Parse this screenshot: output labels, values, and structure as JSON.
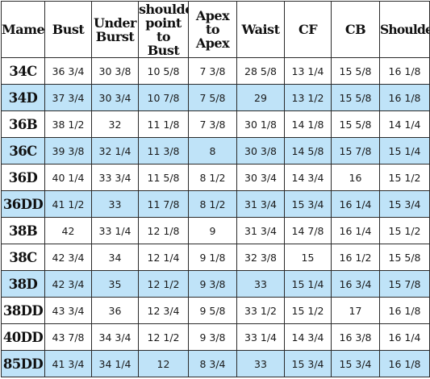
{
  "colors": {
    "highlight": "#bfe3f8",
    "plain": "#ffffff",
    "border": "#2a2a2a"
  },
  "headers": [
    "Mame",
    "Bust",
    "Under Burst",
    "shoulder point to Bust",
    "Apex to Apex",
    "Waist",
    "CF",
    "CB",
    "Shoulder"
  ],
  "rows": [
    {
      "size": "34C",
      "highlight": false,
      "values": [
        "36 3/4",
        "30 3/8",
        "10 5/8",
        "7 3/8",
        "28 5/8",
        "13 1/4",
        "15 5/8",
        "16 1/8"
      ]
    },
    {
      "size": "34D",
      "highlight": true,
      "values": [
        "37 3/4",
        "30 3/4",
        "10 7/8",
        "7 5/8",
        "29",
        "13 1/2",
        "15 5/8",
        "16 1/8"
      ]
    },
    {
      "size": "36B",
      "highlight": false,
      "values": [
        "38 1/2",
        "32",
        "11 1/8",
        "7 3/8",
        "30 1/8",
        "14 1/8",
        "15 5/8",
        "14 1/4"
      ]
    },
    {
      "size": "36C",
      "highlight": true,
      "values": [
        "39 3/8",
        "32 1/4",
        "11 3/8",
        "8",
        "30 3/8",
        "14 5/8",
        "15 7/8",
        "15 1/4"
      ]
    },
    {
      "size": "36D",
      "highlight": false,
      "values": [
        "40 1/4",
        "33 3/4",
        "11 5/8",
        "8 1/2",
        "30 3/4",
        "14 3/4",
        "16",
        "15 1/2"
      ]
    },
    {
      "size": "36DD",
      "highlight": true,
      "values": [
        "41 1/2",
        "33",
        "11 7/8",
        "8 1/2",
        "31 3/4",
        "15 3/4",
        "16 1/4",
        "15 3/4"
      ]
    },
    {
      "size": "38B",
      "highlight": false,
      "values": [
        "42",
        "33 1/4",
        "12 1/8",
        "9",
        "31 3/4",
        "14 7/8",
        "16 1/4",
        "15 1/2"
      ]
    },
    {
      "size": "38C",
      "highlight": false,
      "values": [
        "42 3/4",
        "34",
        "12 1/4",
        "9 1/8",
        "32 3/8",
        "15",
        "16 1/2",
        "15 5/8"
      ]
    },
    {
      "size": "38D",
      "highlight": true,
      "values": [
        "42 3/4",
        "35",
        "12 1/2",
        "9 3/8",
        "33",
        "15 1/4",
        "16 3/4",
        "15 7/8"
      ]
    },
    {
      "size": "38DD",
      "highlight": false,
      "values": [
        "43 3/4",
        "36",
        "12 3/4",
        "9 5/8",
        "33 1/2",
        "15 1/2",
        "17",
        "16 1/8"
      ]
    },
    {
      "size": "40DD",
      "highlight": false,
      "values": [
        "43 7/8",
        "34 3/4",
        "12 1/2",
        "9 3/8",
        "33 1/4",
        "14 3/4",
        "16 3/8",
        "16 1/4"
      ]
    },
    {
      "size": "85DD",
      "highlight": true,
      "values": [
        "41 3/4",
        "34 1/4",
        "12",
        "8 3/4",
        "33",
        "15 3/4",
        "15 3/4",
        "16 1/8"
      ]
    }
  ]
}
